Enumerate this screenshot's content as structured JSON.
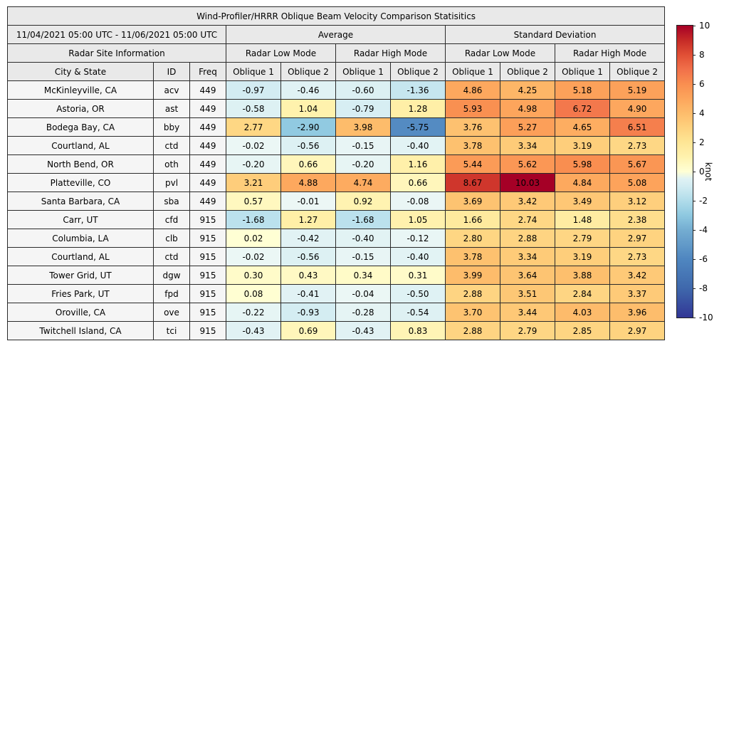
{
  "title": "Wind-Profiler/HRRR Oblique Beam Velocity Comparison Statisitics",
  "header": {
    "date_range": "11/04/2021 05:00 UTC - 11/06/2021 05:00 UTC",
    "group_average": "Average",
    "group_std": "Standard Deviation",
    "site_info": "Radar Site Information",
    "low_mode": "Radar Low Mode",
    "high_mode": "Radar High Mode",
    "columns": [
      "City & State",
      "ID",
      "Freq",
      "Oblique 1",
      "Oblique 2",
      "Oblique 1",
      "Oblique 2",
      "Oblique 1",
      "Oblique 2",
      "Oblique 1",
      "Oblique 2"
    ]
  },
  "colorbar": {
    "label": "knot",
    "min": -10,
    "max": 10,
    "ticks": [
      "10",
      "8",
      "6",
      "4",
      "2",
      "0",
      "-2",
      "-4",
      "-6",
      "-8",
      "-10"
    ]
  },
  "colormap": {
    "negative": [
      [
        0,
        "#ecf7f5"
      ],
      [
        1,
        "#d2ecf2"
      ],
      [
        2,
        "#b0dcea"
      ],
      [
        3,
        "#8ec8e0"
      ],
      [
        4,
        "#74add1"
      ],
      [
        6,
        "#4f86c0"
      ],
      [
        8,
        "#3f68ac"
      ],
      [
        10,
        "#313695"
      ]
    ],
    "positive": [
      [
        0,
        "#ffffd5"
      ],
      [
        1,
        "#fff2ae"
      ],
      [
        2,
        "#fee695"
      ],
      [
        3,
        "#fed27f"
      ],
      [
        4,
        "#fdbc6b"
      ],
      [
        5,
        "#fda55c"
      ],
      [
        6,
        "#f98e50"
      ],
      [
        7,
        "#f1704a"
      ],
      [
        8,
        "#e04f35"
      ],
      [
        9,
        "#c62a27"
      ],
      [
        10,
        "#a50026"
      ]
    ]
  },
  "chart_data": {
    "type": "heatmap",
    "title": "Wind-Profiler/HRRR Oblique Beam Velocity Comparison Statisitics",
    "unit": "knot",
    "vmin": -10,
    "vmax": 10,
    "groups": [
      "Average",
      "Standard Deviation"
    ],
    "modes": [
      "Radar Low Mode",
      "Radar High Mode"
    ],
    "beams": [
      "Oblique 1",
      "Oblique 2"
    ],
    "value_columns": [
      "Avg Low Oblique 1",
      "Avg Low Oblique 2",
      "Avg High Oblique 1",
      "Avg High Oblique 2",
      "Std Low Oblique 1",
      "Std Low Oblique 2",
      "Std High Oblique 1",
      "Std High Oblique 2"
    ],
    "rows": [
      {
        "city": "McKinleyville, CA",
        "id": "acv",
        "freq": "449",
        "values": [
          -0.97,
          -0.46,
          -0.6,
          -1.36,
          4.86,
          4.25,
          5.18,
          5.19
        ]
      },
      {
        "city": "Astoria, OR",
        "id": "ast",
        "freq": "449",
        "values": [
          -0.58,
          1.04,
          -0.79,
          1.28,
          5.93,
          4.98,
          6.72,
          4.9
        ]
      },
      {
        "city": "Bodega Bay, CA",
        "id": "bby",
        "freq": "449",
        "values": [
          2.77,
          -2.9,
          3.98,
          -5.75,
          3.76,
          5.27,
          4.65,
          6.51
        ]
      },
      {
        "city": "Courtland, AL",
        "id": "ctd",
        "freq": "449",
        "values": [
          -0.02,
          -0.56,
          -0.15,
          -0.4,
          3.78,
          3.34,
          3.19,
          2.73
        ]
      },
      {
        "city": "North Bend, OR",
        "id": "oth",
        "freq": "449",
        "values": [
          -0.2,
          0.66,
          -0.2,
          1.16,
          5.44,
          5.62,
          5.98,
          5.67
        ]
      },
      {
        "city": "Platteville, CO",
        "id": "pvl",
        "freq": "449",
        "values": [
          3.21,
          4.88,
          4.74,
          0.66,
          8.67,
          10.03,
          4.84,
          5.08
        ]
      },
      {
        "city": "Santa Barbara, CA",
        "id": "sba",
        "freq": "449",
        "values": [
          0.57,
          -0.01,
          0.92,
          -0.08,
          3.69,
          3.42,
          3.49,
          3.12
        ]
      },
      {
        "city": "Carr, UT",
        "id": "cfd",
        "freq": "915",
        "values": [
          -1.68,
          1.27,
          -1.68,
          1.05,
          1.66,
          2.74,
          1.48,
          2.38
        ]
      },
      {
        "city": "Columbia, LA",
        "id": "clb",
        "freq": "915",
        "values": [
          0.02,
          -0.42,
          -0.4,
          -0.12,
          2.8,
          2.88,
          2.79,
          2.97
        ]
      },
      {
        "city": "Courtland, AL",
        "id": "ctd",
        "freq": "915",
        "values": [
          -0.02,
          -0.56,
          -0.15,
          -0.4,
          3.78,
          3.34,
          3.19,
          2.73
        ]
      },
      {
        "city": "Tower Grid, UT",
        "id": "dgw",
        "freq": "915",
        "values": [
          0.3,
          0.43,
          0.34,
          0.31,
          3.99,
          3.64,
          3.88,
          3.42
        ]
      },
      {
        "city": "Fries Park, UT",
        "id": "fpd",
        "freq": "915",
        "values": [
          0.08,
          -0.41,
          -0.04,
          -0.5,
          2.88,
          3.51,
          2.84,
          3.37
        ]
      },
      {
        "city": "Oroville, CA",
        "id": "ove",
        "freq": "915",
        "values": [
          -0.22,
          -0.93,
          -0.28,
          -0.54,
          3.7,
          3.44,
          4.03,
          3.96
        ]
      },
      {
        "city": "Twitchell Island, CA",
        "id": "tci",
        "freq": "915",
        "values": [
          -0.43,
          0.69,
          -0.43,
          0.83,
          2.88,
          2.79,
          2.85,
          2.97
        ]
      }
    ]
  }
}
